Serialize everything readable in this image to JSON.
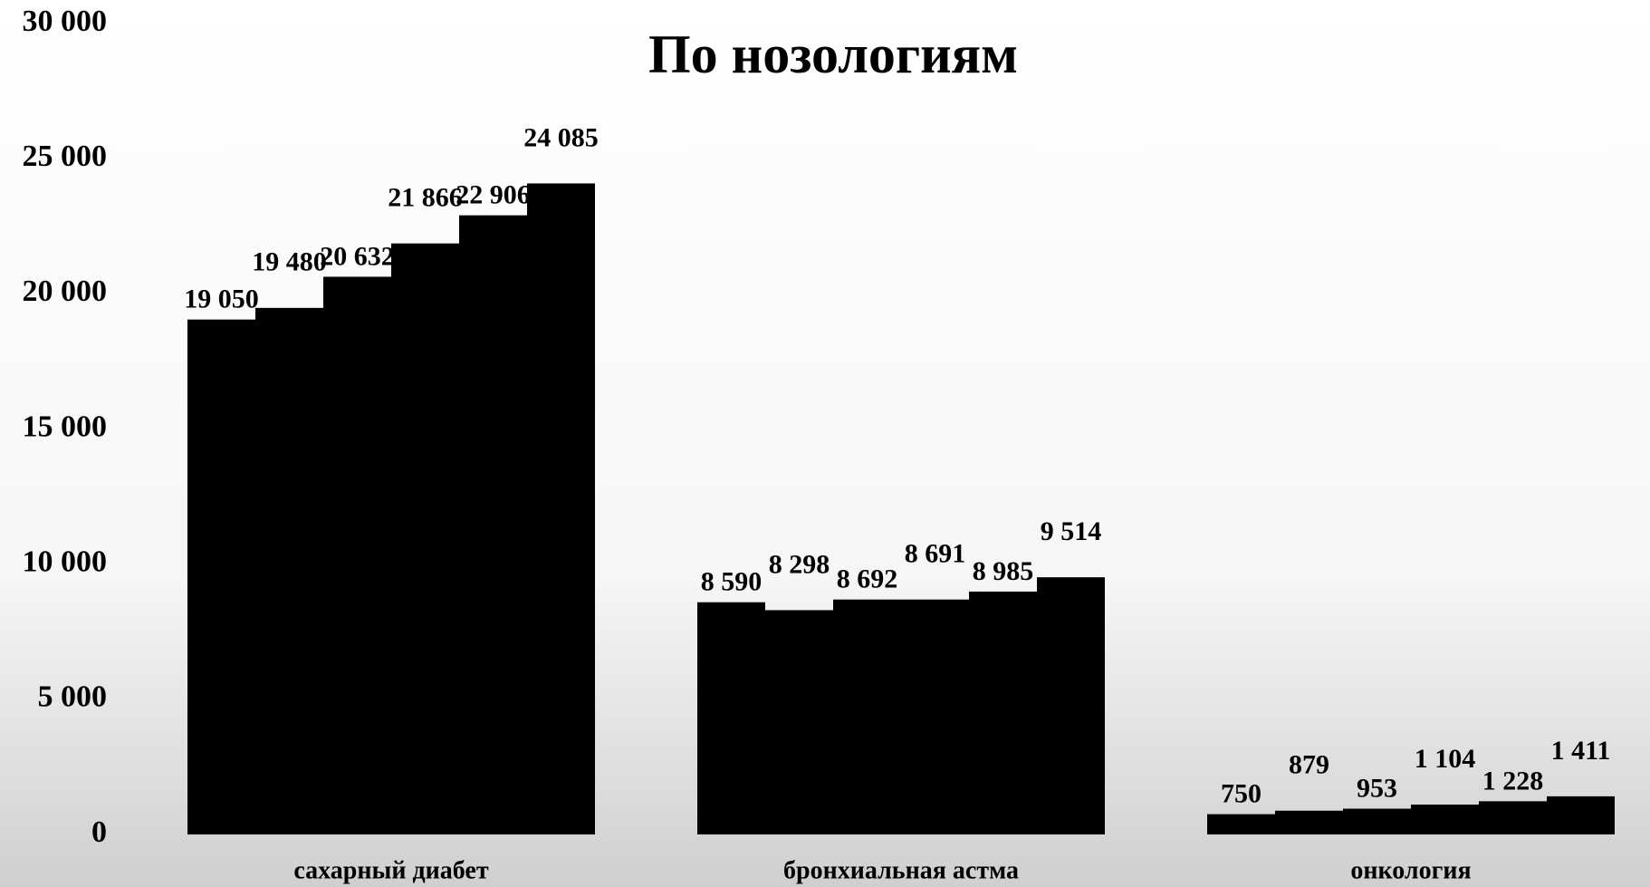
{
  "chart_data": {
    "type": "bar",
    "title": "По нозологиям",
    "categories": [
      "сахарный диабет",
      "бронхиальная  астма",
      "онкология"
    ],
    "series": [
      {
        "color": "#000000",
        "values": [
          19050,
          8590,
          750
        ],
        "value_labels": [
          "19 050",
          "8 590",
          "750"
        ]
      },
      {
        "color": "#000000",
        "values": [
          19480,
          8298,
          879
        ],
        "value_labels": [
          "19 480",
          "8 298",
          "879"
        ]
      },
      {
        "color": "#000000",
        "values": [
          20632,
          8692,
          953
        ],
        "value_labels": [
          "20 632",
          "8 692",
          "953"
        ]
      },
      {
        "color": "#000000",
        "values": [
          21866,
          8691,
          1104
        ],
        "value_labels": [
          "21 866",
          "8 691",
          "1 104"
        ]
      },
      {
        "color": "#000000",
        "values": [
          22906,
          8985,
          1228
        ],
        "value_labels": [
          "22 906",
          "8 985",
          "1 228"
        ]
      },
      {
        "color": "#000000",
        "values": [
          24085,
          9514,
          1411
        ],
        "value_labels": [
          "24 085",
          "9 514",
          "1 411"
        ]
      }
    ],
    "ylim": [
      0,
      30000
    ],
    "yticks": [
      0,
      {
        "value": 5000,
        "label": "5 000"
      },
      {
        "value": 10000,
        "label": "10 000"
      },
      {
        "value": 15000,
        "label": "15 000"
      },
      {
        "value": 20000,
        "label": "20 000"
      },
      {
        "value": 25000,
        "label": "25 000"
      },
      {
        "value": 30000,
        "label": "30 000"
      }
    ],
    "grid": false
  }
}
